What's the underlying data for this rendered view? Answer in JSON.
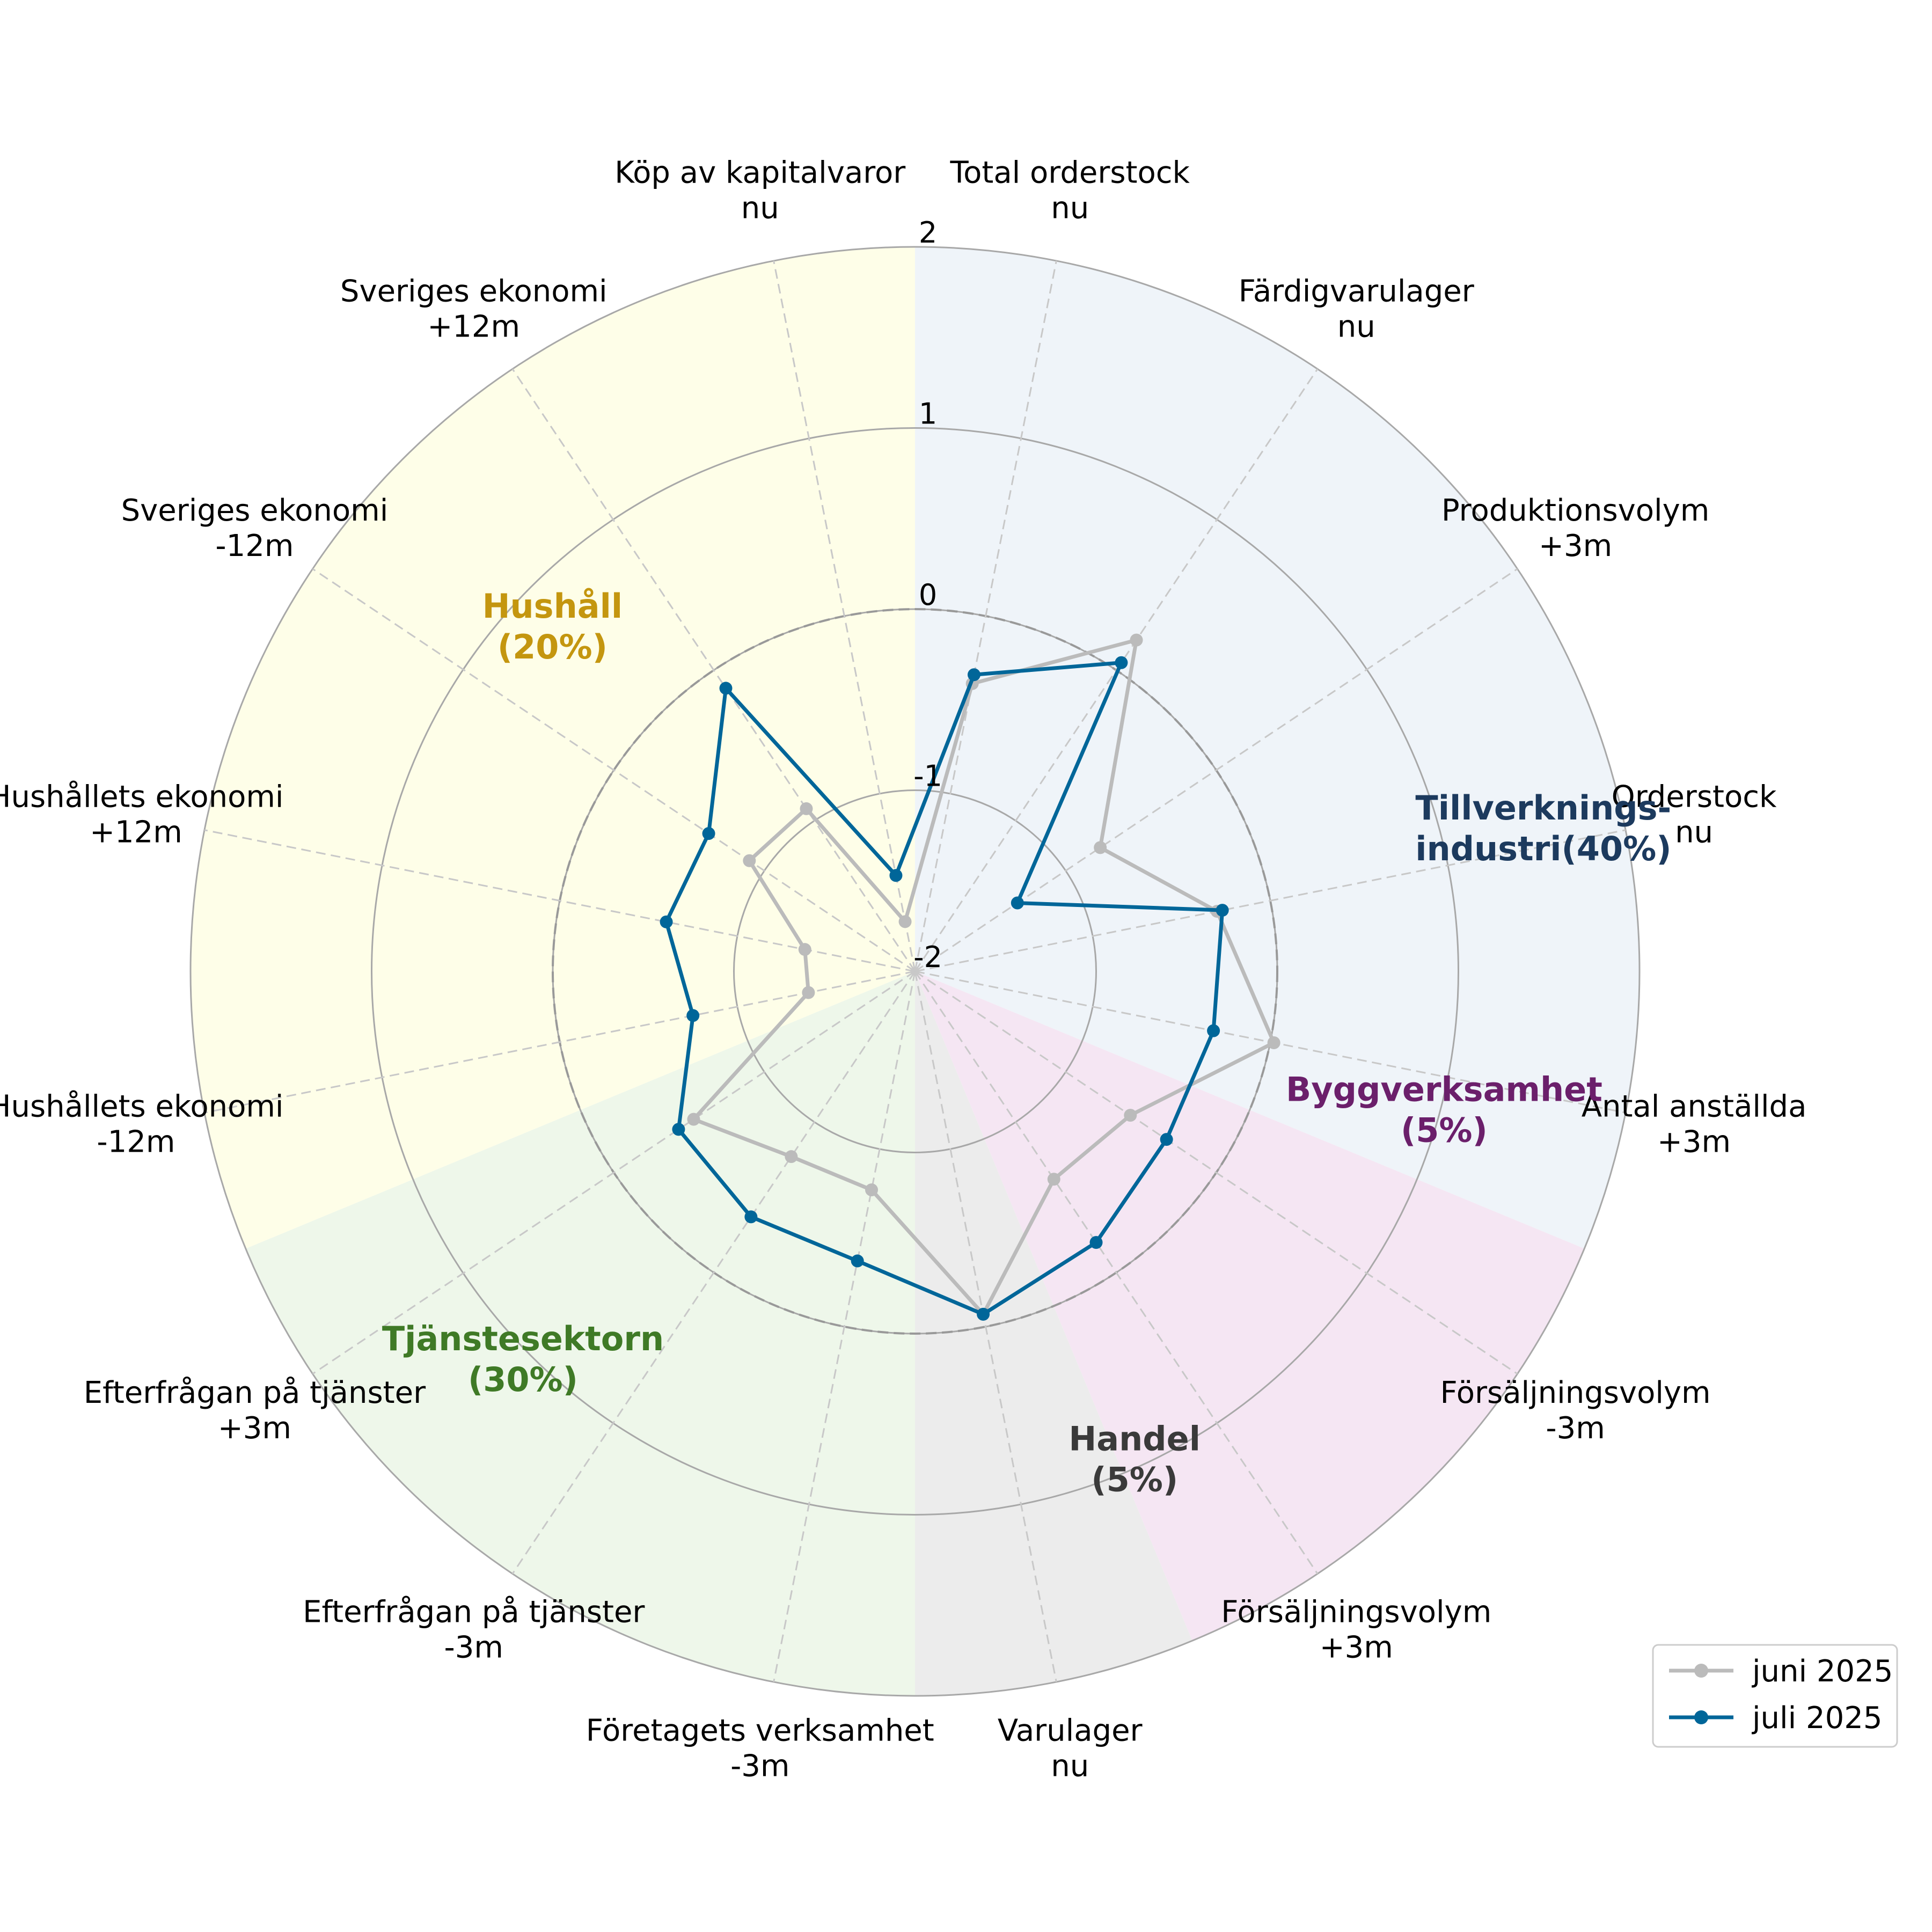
{
  "chart_data": {
    "type": "radar",
    "title": "",
    "rlim": [
      -2,
      2
    ],
    "r_ticks": [
      2,
      1,
      0,
      -1,
      -2
    ],
    "r_tick_labels": [
      "2",
      "1",
      "0",
      "-1",
      "-2"
    ],
    "grid": true,
    "categories": [
      {
        "line1": "Total orderstock",
        "line2": "nu"
      },
      {
        "line1": "Färdigvarulager",
        "line2": "nu"
      },
      {
        "line1": "Produktionsvolym",
        "line2": "+3m"
      },
      {
        "line1": "Orderstock",
        "line2": "nu"
      },
      {
        "line1": "Antal anställda",
        "line2": "+3m"
      },
      {
        "line1": "Försäljningsvolym",
        "line2": "-3m"
      },
      {
        "line1": "Försäljningsvolym",
        "line2": "+3m"
      },
      {
        "line1": "Varulager",
        "line2": "nu"
      },
      {
        "line1": "Företagets verksamhet",
        "line2": "-3m"
      },
      {
        "line1": "Efterfrågan på tjänster",
        "line2": "-3m"
      },
      {
        "line1": "Efterfrågan på tjänster",
        "line2": "+3m"
      },
      {
        "line1": "Hushållets ekonomi",
        "line2": "-12m"
      },
      {
        "line1": "Hushållets ekonomi",
        "line2": "+12m"
      },
      {
        "line1": "Sveriges ekonomi",
        "line2": "-12m"
      },
      {
        "line1": "Sveriges ekonomi",
        "line2": "+12m"
      },
      {
        "line1": "Köp av kapitalvaror",
        "line2": "nu"
      }
    ],
    "series": [
      {
        "name": "juni 2025",
        "color": "#bbbbbb",
        "values": [
          -0.38,
          0.2,
          -0.77,
          -0.3,
          0.02,
          -0.57,
          -0.62,
          -0.07,
          -0.77,
          -0.77,
          -0.53,
          -1.4,
          -1.38,
          -0.9,
          -0.92,
          -1.72
        ]
      },
      {
        "name": "juli 2025",
        "color": "#006699",
        "values": [
          -0.33,
          0.05,
          -1.32,
          -0.27,
          -0.32,
          -0.33,
          -0.2,
          -0.07,
          -0.37,
          -0.37,
          -0.43,
          -0.75,
          -0.6,
          -0.63,
          -0.12,
          -1.46
        ]
      }
    ],
    "sectors": [
      {
        "name": "Tillverknings-",
        "name2": "industri(40%)",
        "color": "#1c3a5e",
        "fill": "#eff4f9"
      },
      {
        "name": "Byggverksamhet",
        "name2": "(5%)",
        "color": "#6b1f6b",
        "fill": "#f5e6f3"
      },
      {
        "name": "Handel",
        "name2": "(5%)",
        "color": "#3a3a3a",
        "fill": "#ececec"
      },
      {
        "name": "Tjänstesektorn",
        "name2": "(30%)",
        "color": "#3f7a26",
        "fill": "#eef7ea"
      },
      {
        "name": "Hushåll",
        "name2": "(20%)",
        "color": "#c4960f",
        "fill": "#fefee8"
      }
    ],
    "legend_position": "bottom-right"
  }
}
